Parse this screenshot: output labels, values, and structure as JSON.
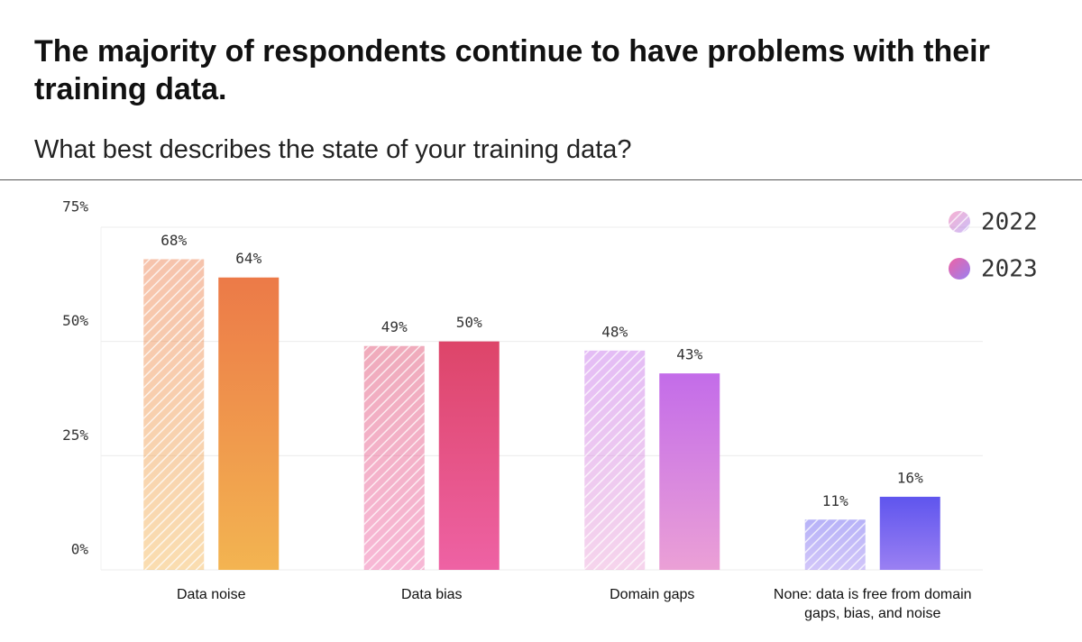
{
  "chart_data": {
    "type": "bar",
    "title": "The majority of respondents continue to have problems with their training data.",
    "subtitle": "What best describes the state of your training data?",
    "categories": [
      "Data noise",
      "Data bias",
      "Domain gaps",
      "None: data is free from domain gaps, bias, and noise"
    ],
    "category_colors": [
      [
        "#ec7a48",
        "#f3b451"
      ],
      [
        "#dd4569",
        "#ee62a4"
      ],
      [
        "#c36ce9",
        "#eba0d6"
      ],
      [
        "#5f55ee",
        "#9a80f2"
      ]
    ],
    "series": [
      {
        "name": "2022",
        "hatched": true,
        "values": [
          68,
          49,
          48,
          11
        ],
        "value_labels": [
          "68%",
          "49%",
          "48%",
          "11%"
        ]
      },
      {
        "name": "2023",
        "hatched": false,
        "values": [
          64,
          50,
          43,
          16
        ],
        "value_labels": [
          "64%",
          "50%",
          "43%",
          "16%"
        ]
      }
    ],
    "ylim": [
      0,
      75
    ],
    "yticks": [
      {
        "value": 0,
        "label": "0%"
      },
      {
        "value": 25,
        "label": "25%"
      },
      {
        "value": 50,
        "label": "50%"
      },
      {
        "value": 75,
        "label": "75%"
      }
    ],
    "grid": true,
    "legend": "upper right"
  }
}
